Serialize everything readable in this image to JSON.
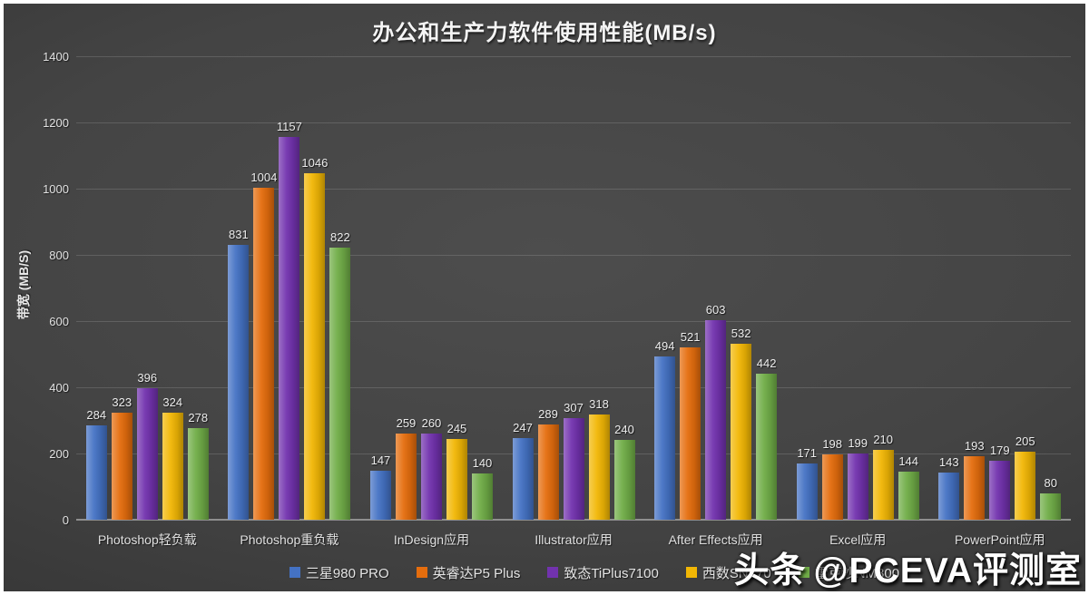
{
  "title": "办公和生产力软件使用性能(MB/s)",
  "watermark": {
    "brand": "头条",
    "handle": "@PCEVA评测室"
  },
  "chart_data": {
    "type": "bar",
    "title": "办公和生产力软件使用性能(MB/s)",
    "xlabel": "",
    "ylabel": "带宽 (MB/S)",
    "ylim": [
      0,
      1400
    ],
    "y_ticks": [
      0,
      200,
      400,
      600,
      800,
      1000,
      1200,
      1400
    ],
    "grid": true,
    "legend_position": "bottom",
    "categories": [
      "Photoshop轻负载",
      "Photoshop重负载",
      "InDesign应用",
      "Illustrator应用",
      "After Effects应用",
      "Excel应用",
      "PowerPoint应用"
    ],
    "series": [
      {
        "name": "三星980 PRO",
        "color": "#4472C4",
        "values": [
          284,
          831,
          147,
          247,
          494,
          171,
          143
        ]
      },
      {
        "name": "英睿达P5 Plus",
        "color": "#E56D0D",
        "values": [
          323,
          1004,
          259,
          289,
          521,
          198,
          193
        ]
      },
      {
        "name": "致态TiPlus7100",
        "color": "#7232AE",
        "values": [
          396,
          1157,
          260,
          307,
          603,
          199,
          179
        ]
      },
      {
        "name": "西数SN770",
        "color": "#F2B705",
        "values": [
          324,
          1046,
          245,
          318,
          532,
          210,
          205
        ]
      },
      {
        "name": "雷克沙NM800",
        "color": "#70AD47",
        "values": [
          278,
          822,
          140,
          240,
          442,
          144,
          80
        ]
      }
    ]
  }
}
